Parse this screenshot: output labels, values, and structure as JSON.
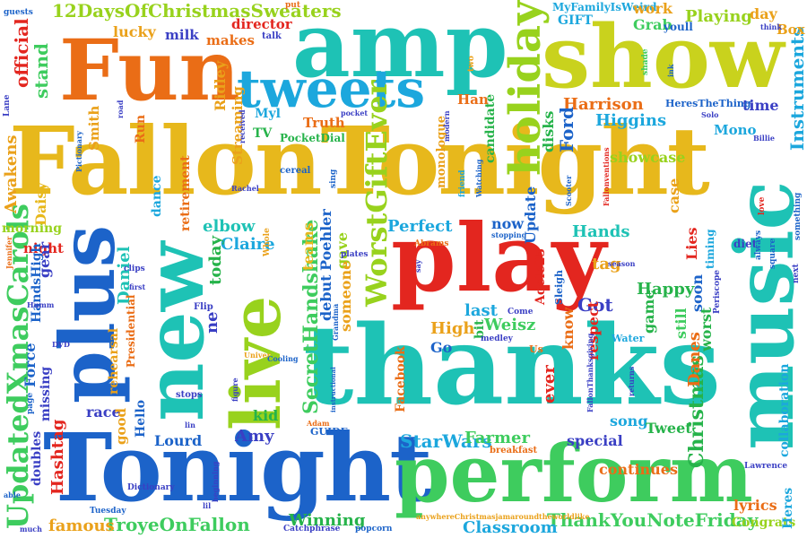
{
  "words": {
    "fallontonight": "FallonTonight",
    "tonight": "Tonight",
    "thanks": "thanks",
    "perform": "perform",
    "show": "show",
    "amp": "amp",
    "fun": "Fun",
    "play": "play",
    "music": "music",
    "new": "new",
    "live": "live",
    "plus": "plus",
    "tweets": "tweets",
    "holiday": "holiday",
    "updatedxmascarols": "UpdatedXmasCarols",
    "worstgiftever": "WorstGiftEver",
    "secrethandshake": "SecretHandshake",
    "starwars": "StarWars",
    "thankyounotefriday": "ThankYouNoteFriday",
    "twelvedays": "12DaysOfChristmasSweaters",
    "troyeonfallon": "TroyeOnFallon",
    "myfamily": "MyFamilyIsWeird",
    "classroom": "Classroom",
    "winning": "Winning",
    "christmas": "Christmas",
    "instruments": "Instruments",
    "collaboration": "collaboration",
    "playing": "Playing",
    "harrison": "Harrison",
    "higgins": "Higgins",
    "ford": "Ford",
    "disks": "disks",
    "showcase": "showcase",
    "candidate": "candidate",
    "awakens": "Awakens",
    "farmer": "Farmer",
    "continues": "continues",
    "lyrics": "lyrics",
    "congrats": "Congrats",
    "famous": "famous",
    "hashtag": "Hashtag",
    "director": "director",
    "makes": "makes",
    "milk": "milk",
    "lucky": "lucky",
    "stand": "stand",
    "official": "official",
    "work": "work",
    "grab": "Grab",
    "gift": "GIFT",
    "day": "day",
    "box": "Box",
    "time": "time",
    "mono": "Mono",
    "tv": "TV",
    "pocketdial": "PocketDial",
    "truth": "Truth",
    "myl": "Myl",
    "han": "Han",
    "smith": "Smith",
    "run": "Run",
    "ridley": "Ridley",
    "streaming": "Streaming",
    "retirement": "retirement",
    "dance": "dance",
    "morning": "morning",
    "night": "night",
    "daisy": "Daisy",
    "elbow": "elbow",
    "claire": "Claire",
    "daniel": "Daniel",
    "teams": "teams",
    "poehler": "Poehler",
    "gave": "gave",
    "someone": "someone",
    "debut": "debut",
    "high": "High",
    "perfect": "Perfect",
    "now": "now",
    "update": "Update",
    "hands": "Hands",
    "tag": "tag",
    "got": "Got",
    "know": "know",
    "respect": "respect",
    "lies": "Lies",
    "happy": "Happy",
    "case": "case",
    "timing": "timing",
    "soon": "soon",
    "game": "game",
    "still": "still",
    "worst": "worst",
    "danes": "Danes",
    "last": "last",
    "weisz": "Weisz",
    "bit": "bit",
    "go": "Go",
    "ever": "ever",
    "song": "song",
    "tweet": "Tweet",
    "special": "special",
    "amy": "Amy",
    "lourd": "Lourd",
    "kid": "kid",
    "race": "race",
    "good": "good",
    "hello": "Hello",
    "rehearsal": "rehearsal",
    "presidential": "Presidential",
    "force": "Force",
    "missing": "missing",
    "doubles": "doubles",
    "gear": "gear",
    "handshigh": "HandsHigh",
    "facebook": "Facebook",
    "monologue": "monologue",
    "diet": "diet",
    "heres": "Heres",
    "heresthething": "HeresTheThing",
    "adele25": "Adele25",
    "water": "Water",
    "youll": "youll",
    "guests": "guests",
    "talk": "talk",
    "put": "put",
    "two": "two",
    "shade": "shade",
    "ne": "ne",
    "today": "today",
    "guide": "GUIDE",
    "cereal": "cereal",
    "sing": "sing",
    "friend": "friend",
    "abrams": "Abrams",
    "medley": "medley",
    "come": "Come",
    "sleigh": "Sleigh",
    "catchphrase": "Catchphrase",
    "popcorn": "popcorn",
    "anywhere": "anywhereChristmasjamaroundtheworldlike",
    "breakfast": "breakfast",
    "adam": "Adam",
    "lawrence": "Lawrence",
    "tuesday": "Tuesday",
    "dictionary": "Dictionary",
    "stops": "stops",
    "flip": "Flip",
    "clips": "clips",
    "whole": "Whole",
    "plates": "plates",
    "stopping": "stopping",
    "season": "season",
    "periscope": "Periscope",
    "always": "always",
    "square": "square",
    "next": "next",
    "something": "something",
    "love": "love",
    "lane": "Lane",
    "billie": "Billie",
    "solo": "Solo",
    "ink": "ink",
    "scooter": "Scooter",
    "rachel": "Rachel",
    "jennifer": "Jennifer",
    "dvd": "DVD",
    "page": "page",
    "able": "able",
    "much": "much",
    "fallonthanksgiving": "FallonThanksgiving",
    "fallonventions": "Fallonventions",
    "us": "Us",
    "univer": "Univer",
    "cooling": "Cooling",
    "grandma": "Grandma",
    "instructional": "instructional",
    "pictionary": "Pictionary",
    "say": "say",
    "modern": "modern",
    "watching": "Watching",
    "humm": "Humm",
    "beginning": "beginning",
    "returns": "returns",
    "first": "first",
    "pocket": "pocket",
    "road": "road",
    "think": "think",
    "received": "received",
    "figure": "figure",
    "lin": "lin",
    "lil": "lil"
  },
  "colors": {
    "yellow": "#e7b81c",
    "lime": "#98d21d",
    "lightgreen": "#3ecc5e",
    "teal": "#1ec2b5",
    "cyan": "#1ca7dd",
    "blue": "#1c63c9",
    "indigo": "#3a3fc4",
    "red": "#e3261f",
    "orange": "#ea6d16",
    "amber": "#eaa11a",
    "green": "#26b34a"
  }
}
